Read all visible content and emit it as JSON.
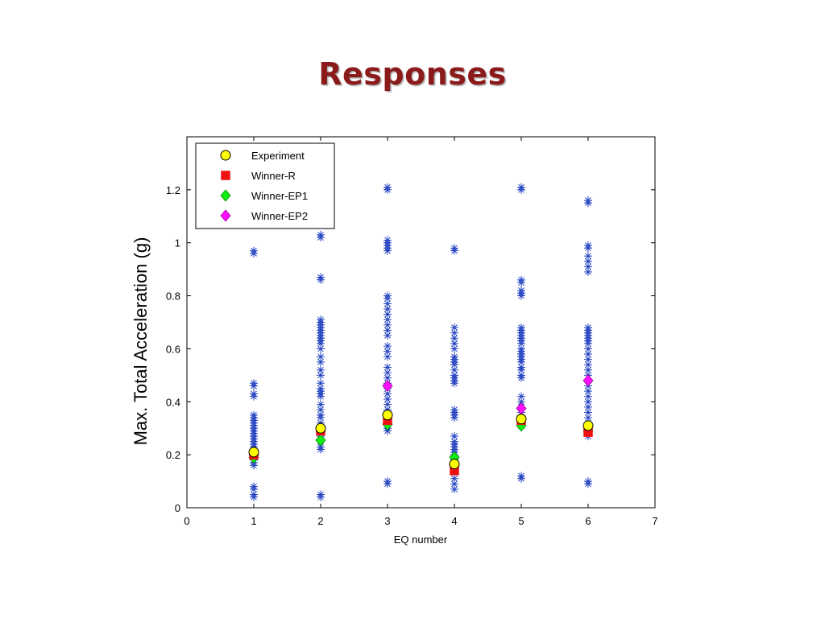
{
  "slide": {
    "title": "Responses"
  },
  "chart_data": {
    "type": "scatter",
    "title": "",
    "xlabel": "EQ number",
    "ylabel": "Max. Total Acceleration (g)",
    "xlim": [
      0,
      7
    ],
    "ylim": [
      0,
      1.4
    ],
    "xticks": [
      0,
      1,
      2,
      3,
      4,
      5,
      6,
      7
    ],
    "yticks": [
      0,
      0.2,
      0.4,
      0.6,
      0.8,
      1,
      1.2
    ],
    "ytick_labels": [
      "0",
      "0.2",
      "0.4",
      "0.6",
      "0.8",
      "1",
      "1.2"
    ],
    "grid": false,
    "legend_position": "top-left",
    "background_star_color": "#1f3fbf",
    "background_star_values": {
      "1": [
        0.04,
        0.05,
        0.07,
        0.08,
        0.16,
        0.17,
        0.18,
        0.19,
        0.2,
        0.21,
        0.22,
        0.23,
        0.24,
        0.25,
        0.26,
        0.27,
        0.28,
        0.29,
        0.3,
        0.31,
        0.32,
        0.33,
        0.34,
        0.35,
        0.42,
        0.43,
        0.46,
        0.47,
        0.96,
        0.97
      ],
      "2": [
        0.04,
        0.05,
        0.22,
        0.23,
        0.25,
        0.27,
        0.29,
        0.3,
        0.32,
        0.34,
        0.35,
        0.37,
        0.39,
        0.42,
        0.43,
        0.44,
        0.45,
        0.47,
        0.5,
        0.52,
        0.55,
        0.57,
        0.6,
        0.62,
        0.63,
        0.64,
        0.65,
        0.66,
        0.67,
        0.68,
        0.69,
        0.7,
        0.71,
        0.86,
        0.87,
        1.02,
        1.03
      ],
      "3": [
        0.09,
        0.1,
        0.29,
        0.3,
        0.31,
        0.33,
        0.35,
        0.37,
        0.39,
        0.41,
        0.43,
        0.45,
        0.47,
        0.49,
        0.51,
        0.53,
        0.57,
        0.59,
        0.61,
        0.65,
        0.67,
        0.69,
        0.71,
        0.73,
        0.75,
        0.77,
        0.79,
        0.8,
        0.97,
        0.98,
        0.99,
        1.0,
        1.01,
        1.2,
        1.21
      ],
      "4": [
        0.07,
        0.09,
        0.11,
        0.14,
        0.15,
        0.16,
        0.17,
        0.18,
        0.2,
        0.21,
        0.22,
        0.23,
        0.24,
        0.25,
        0.27,
        0.34,
        0.35,
        0.36,
        0.37,
        0.47,
        0.48,
        0.49,
        0.5,
        0.52,
        0.54,
        0.55,
        0.56,
        0.57,
        0.6,
        0.62,
        0.64,
        0.66,
        0.68,
        0.97,
        0.98
      ],
      "5": [
        0.11,
        0.12,
        0.31,
        0.32,
        0.34,
        0.36,
        0.38,
        0.4,
        0.42,
        0.49,
        0.5,
        0.52,
        0.53,
        0.55,
        0.56,
        0.57,
        0.58,
        0.59,
        0.6,
        0.62,
        0.63,
        0.64,
        0.65,
        0.66,
        0.67,
        0.68,
        0.8,
        0.81,
        0.82,
        0.85,
        0.86,
        1.2,
        1.21
      ],
      "6": [
        0.09,
        0.1,
        0.27,
        0.28,
        0.3,
        0.32,
        0.34,
        0.36,
        0.38,
        0.4,
        0.42,
        0.44,
        0.46,
        0.5,
        0.52,
        0.54,
        0.56,
        0.58,
        0.6,
        0.62,
        0.63,
        0.64,
        0.65,
        0.66,
        0.67,
        0.68,
        0.89,
        0.91,
        0.93,
        0.95,
        0.98,
        0.99,
        1.15,
        1.16
      ]
    },
    "series": [
      {
        "name": "Experiment",
        "marker": "circle",
        "color": "#ffff00",
        "x": [
          1,
          2,
          3,
          4,
          5,
          6
        ],
        "values": [
          0.21,
          0.3,
          0.35,
          0.165,
          0.335,
          0.31
        ]
      },
      {
        "name": "Winner-R",
        "marker": "square",
        "color": "#ee1111",
        "x": [
          1,
          2,
          3,
          4,
          5,
          6
        ],
        "values": [
          0.2,
          0.29,
          0.33,
          0.14,
          0.33,
          0.285
        ]
      },
      {
        "name": "Winner-EP1",
        "marker": "diamond",
        "color": "#11ee11",
        "x": [
          1,
          2,
          3,
          4,
          5,
          6
        ],
        "values": [
          0.19,
          0.255,
          0.315,
          0.19,
          0.31,
          0.29
        ]
      },
      {
        "name": "Winner-EP2",
        "marker": "diamond",
        "color": "#ff11ff",
        "x": [
          1,
          2,
          3,
          4,
          5,
          6
        ],
        "values": [
          0.2,
          0.29,
          0.46,
          0.16,
          0.375,
          0.48
        ]
      }
    ]
  }
}
